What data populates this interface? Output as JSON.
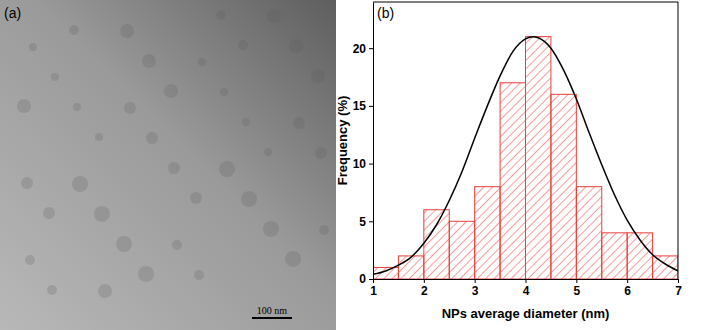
{
  "chart_data": [
    {
      "type": "image",
      "title": "(a)",
      "annotations": [
        "100 nm"
      ]
    },
    {
      "type": "histogram",
      "title": "(b)",
      "x_label": "NPs average diameter (nm)",
      "y_label": "Frequency (%)",
      "bins": [
        1,
        1.5,
        2,
        2.5,
        3,
        3.5,
        4,
        4.5,
        5,
        5.5,
        6,
        6.5,
        7
      ],
      "values": [
        1,
        2,
        6,
        5,
        8,
        17,
        21,
        16,
        8,
        4,
        4,
        2
      ],
      "color": "#e8403a",
      "fit": {
        "color": "#000000",
        "x": [
          1,
          1.25,
          1.5,
          1.75,
          2,
          2.25,
          2.5,
          2.75,
          3,
          3.25,
          3.5,
          3.75,
          4,
          4.15,
          4.25,
          4.5,
          4.75,
          5,
          5.25,
          5.5,
          5.75,
          6,
          6.25,
          6.5,
          6.75,
          7
        ],
        "values": [
          0.4,
          0.7,
          1.2,
          1.9,
          3.1,
          4.7,
          6.8,
          9.3,
          12.2,
          15.0,
          17.6,
          19.7,
          20.8,
          21,
          20.9,
          20.0,
          18.1,
          15.6,
          12.7,
          9.9,
          7.3,
          5.1,
          3.4,
          2.1,
          1.3,
          0.7
        ]
      },
      "xlim": [
        1,
        7
      ],
      "xticks": [
        1,
        2,
        3,
        4,
        5,
        6,
        7
      ],
      "ylim": [
        0,
        24
      ],
      "yticks": [
        0,
        5,
        10,
        15,
        20
      ]
    }
  ]
}
